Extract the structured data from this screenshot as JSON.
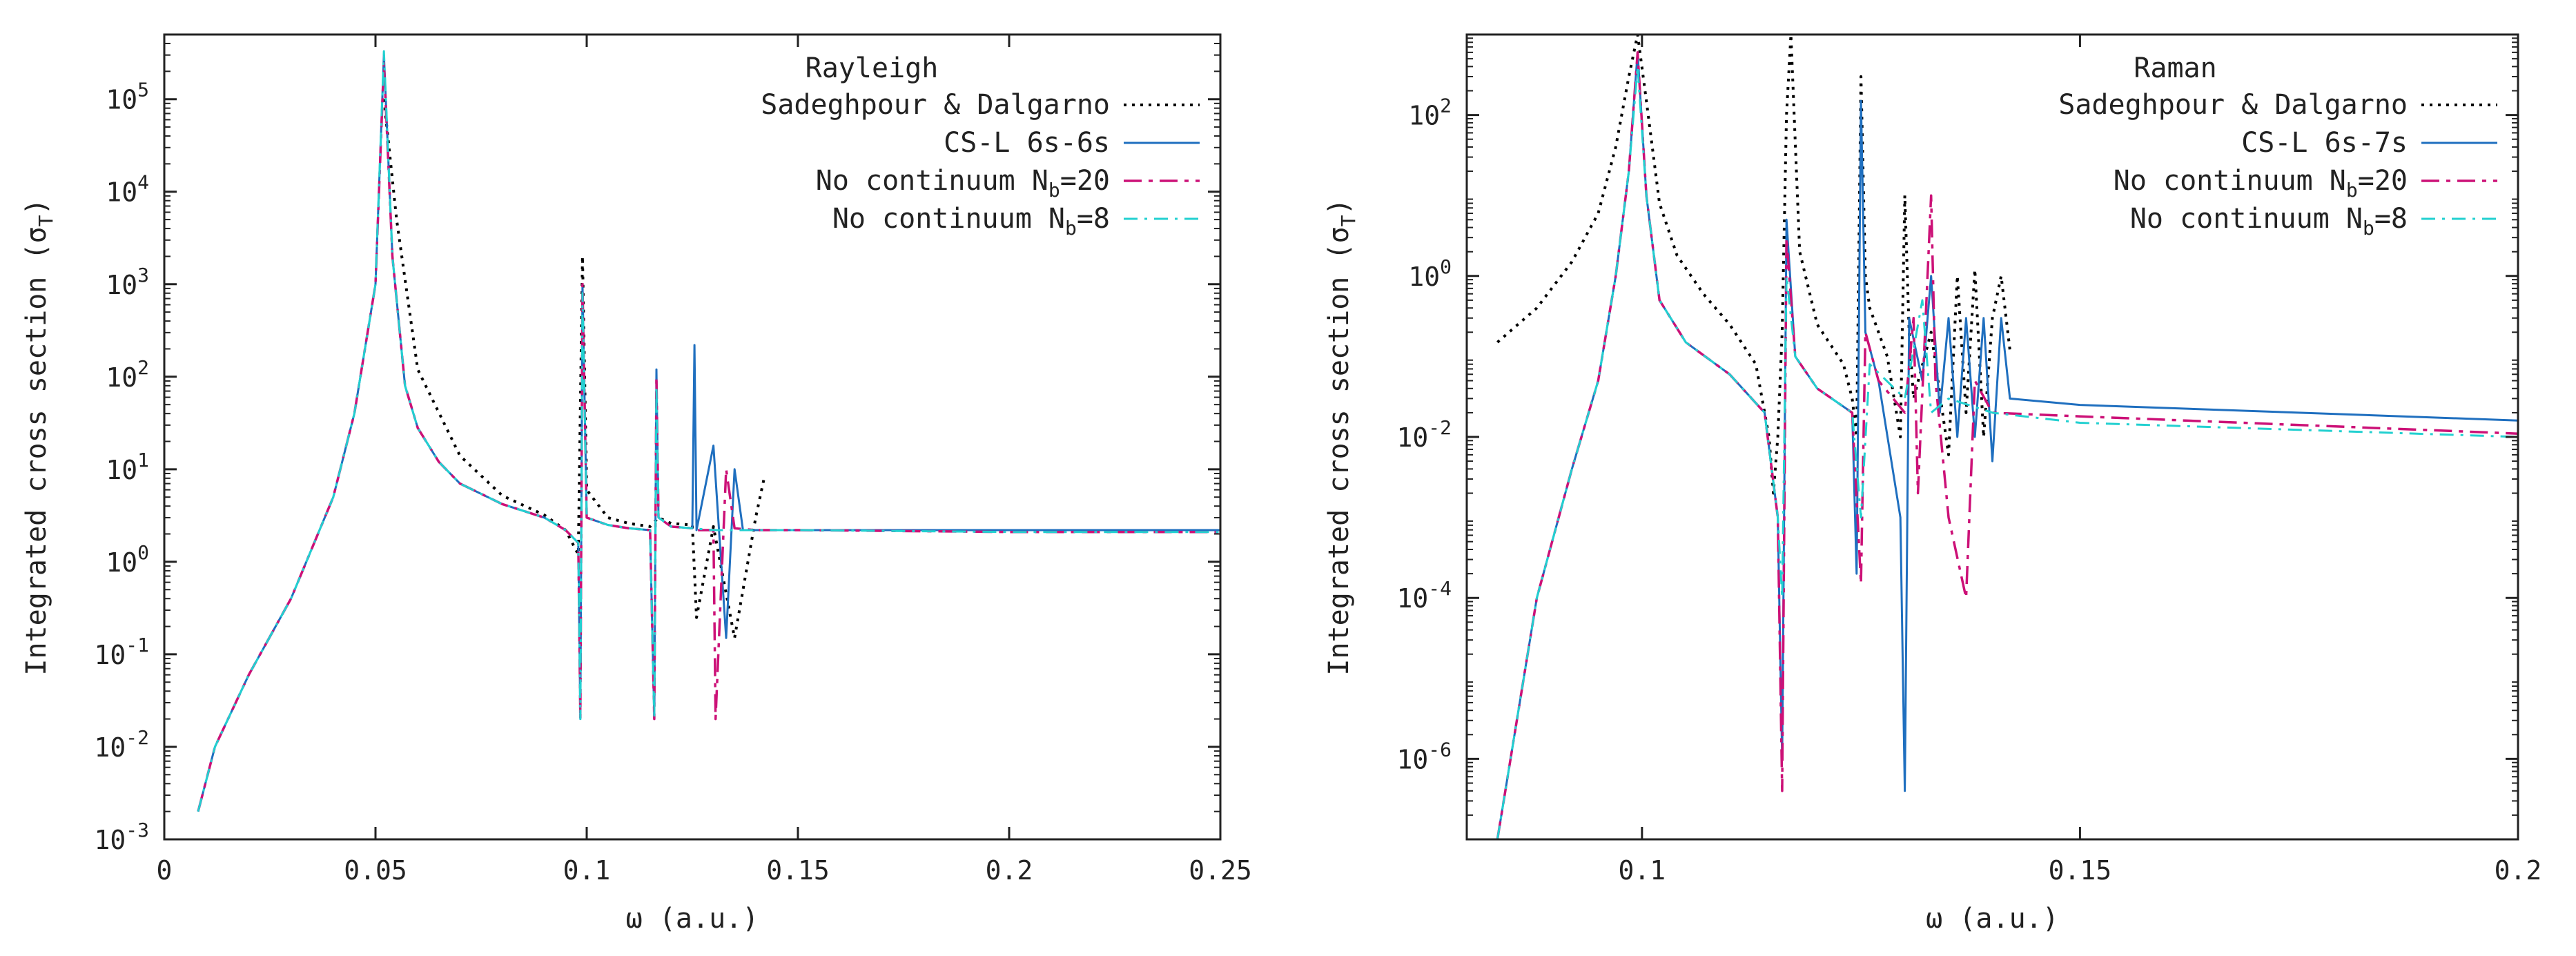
{
  "colors": {
    "axis": "#222222",
    "sadeghpour": "#000000",
    "cs_l": "#1f6fbf",
    "no_cont_20": "#cc1177",
    "no_cont_8": "#22d0d0"
  },
  "chart_data": [
    {
      "type": "line",
      "title": "",
      "legend_title": "Rayleigh",
      "legend_position": "top-right",
      "xlabel": "ω (a.u.)",
      "ylabel": "Integrated cross section (σT)",
      "ylabel_parts": {
        "main": "Integrated cross section (σ",
        "sub": "T",
        "close": ")"
      },
      "xlim": [
        0,
        0.25
      ],
      "ylim": [
        0.001,
        500000
      ],
      "yscale": "log",
      "grid": false,
      "x_ticks": [
        0,
        0.05,
        0.1,
        0.15,
        0.2,
        0.25
      ],
      "x_tick_labels": [
        "0",
        "0.05",
        "0.1",
        "0.15",
        "0.2",
        "0.25"
      ],
      "y_ticks": [
        0.001,
        0.01,
        0.1,
        1,
        10,
        100,
        1000,
        10000,
        100000
      ],
      "y_tick_labels": [
        {
          "base": "10",
          "exp": "-3"
        },
        {
          "base": "10",
          "exp": "-2"
        },
        {
          "base": "10",
          "exp": "-1"
        },
        {
          "base": "10",
          "exp": "0"
        },
        {
          "base": "10",
          "exp": "1"
        },
        {
          "base": "10",
          "exp": "2"
        },
        {
          "base": "10",
          "exp": "3"
        },
        {
          "base": "10",
          "exp": "4"
        },
        {
          "base": "10",
          "exp": "5"
        }
      ],
      "legend": [
        {
          "label": "Sadeghpour & Dalgarno",
          "style": "dotted",
          "color_key": "sadeghpour"
        },
        {
          "label": "CS-L 6s-6s",
          "style": "solid",
          "color_key": "cs_l"
        },
        {
          "label": "No continuum N",
          "sub": "b",
          "suffix": "=20",
          "style": "dashdot",
          "color_key": "no_cont_20"
        },
        {
          "label": "No continuum N",
          "sub": "b",
          "suffix": "=8",
          "style": "dashdot2",
          "color_key": "no_cont_8"
        }
      ],
      "series": [
        {
          "name": "Sadeghpour & Dalgarno",
          "x": [
            0.052,
            0.055,
            0.06,
            0.07,
            0.08,
            0.09,
            0.095,
            0.098,
            0.099,
            0.1,
            0.105,
            0.11,
            0.115,
            0.117,
            0.12,
            0.125,
            0.126,
            0.13,
            0.135,
            0.14,
            0.142
          ],
          "y": [
            100000,
            5000,
            120,
            14,
            5.2,
            3.2,
            2.2,
            1.2,
            2000,
            6,
            3,
            2.6,
            2.4,
            3,
            2.6,
            2.5,
            0.25,
            2.4,
            0.15,
            3,
            8
          ]
        },
        {
          "name": "CS-L 6s-6s",
          "x": [
            0.008,
            0.012,
            0.02,
            0.03,
            0.04,
            0.045,
            0.05,
            0.052,
            0.054,
            0.057,
            0.06,
            0.065,
            0.07,
            0.08,
            0.09,
            0.095,
            0.098,
            0.0985,
            0.099,
            0.1,
            0.105,
            0.11,
            0.115,
            0.116,
            0.1165,
            0.117,
            0.12,
            0.125,
            0.1255,
            0.126,
            0.13,
            0.133,
            0.135,
            0.137,
            0.14,
            0.15,
            0.2,
            0.25
          ],
          "y": [
            0.002,
            0.01,
            0.06,
            0.4,
            5,
            40,
            1000,
            300000,
            2000,
            80,
            28,
            12,
            7,
            4.2,
            3,
            2.2,
            1.6,
            0.02,
            1000,
            3,
            2.5,
            2.3,
            2.2,
            0.02,
            120,
            3,
            2.4,
            2.3,
            220,
            2.2,
            18,
            0.15,
            10,
            2.2,
            2.2,
            2.2,
            2.2,
            2.2
          ]
        },
        {
          "name": "No continuum Nb=20",
          "x": [
            0.008,
            0.012,
            0.02,
            0.03,
            0.04,
            0.045,
            0.05,
            0.052,
            0.054,
            0.057,
            0.06,
            0.065,
            0.07,
            0.08,
            0.09,
            0.095,
            0.098,
            0.0985,
            0.099,
            0.1,
            0.105,
            0.11,
            0.115,
            0.116,
            0.1165,
            0.117,
            0.12,
            0.125,
            0.126,
            0.13,
            0.1305,
            0.133,
            0.135,
            0.14,
            0.15,
            0.2,
            0.25
          ],
          "y": [
            0.002,
            0.01,
            0.06,
            0.4,
            5,
            40,
            1000,
            250000,
            2000,
            80,
            28,
            12,
            7,
            4.2,
            3,
            2.2,
            1.6,
            0.02,
            1000,
            3,
            2.5,
            2.3,
            2.2,
            0.02,
            100,
            3,
            2.4,
            2.3,
            2.2,
            2.2,
            0.02,
            10,
            2.3,
            2.2,
            2.2,
            2.1,
            2.1
          ]
        },
        {
          "name": "No continuum Nb=8",
          "x": [
            0.008,
            0.012,
            0.02,
            0.03,
            0.04,
            0.045,
            0.05,
            0.052,
            0.054,
            0.057,
            0.06,
            0.065,
            0.07,
            0.08,
            0.09,
            0.095,
            0.098,
            0.0985,
            0.099,
            0.1,
            0.105,
            0.11,
            0.115,
            0.116,
            0.1165,
            0.117,
            0.12,
            0.125,
            0.13,
            0.14,
            0.15,
            0.2,
            0.25
          ],
          "y": [
            0.002,
            0.01,
            0.06,
            0.4,
            5,
            40,
            1000,
            330000,
            2000,
            80,
            28,
            12,
            7,
            4.2,
            3,
            2.2,
            1.6,
            0.02,
            800,
            3,
            2.5,
            2.3,
            2.2,
            0.02,
            80,
            3,
            2.4,
            2.3,
            2.2,
            2.2,
            2.2,
            2.1,
            2.1
          ]
        }
      ]
    },
    {
      "type": "line",
      "title": "",
      "legend_title": "Raman",
      "legend_position": "top-right",
      "xlabel": "ω (a.u.)",
      "ylabel": "Integrated cross section (σT)",
      "ylabel_parts": {
        "main": "Integrated cross section (σ",
        "sub": "T",
        "close": ")"
      },
      "xlim": [
        0.08,
        0.2
      ],
      "ylim": [
        1e-07,
        1000
      ],
      "yscale": "log",
      "grid": false,
      "x_ticks": [
        0.1,
        0.15,
        0.2
      ],
      "x_tick_labels": [
        "0.1",
        "0.15",
        "0.2"
      ],
      "y_ticks": [
        1e-06,
        0.0001,
        0.01,
        1,
        100
      ],
      "y_tick_labels": [
        {
          "base": "10",
          "exp": "-6"
        },
        {
          "base": "10",
          "exp": "-4"
        },
        {
          "base": "10",
          "exp": "-2"
        },
        {
          "base": "10",
          "exp": "0"
        },
        {
          "base": "10",
          "exp": "2"
        }
      ],
      "legend": [
        {
          "label": "Sadeghpour & Dalgarno",
          "style": "dotted",
          "color_key": "sadeghpour"
        },
        {
          "label": "CS-L 6s-7s",
          "style": "solid",
          "color_key": "cs_l"
        },
        {
          "label": "No continuum N",
          "sub": "b",
          "suffix": "=20",
          "style": "dashdot",
          "color_key": "no_cont_20"
        },
        {
          "label": "No continuum N",
          "sub": "b",
          "suffix": "=8",
          "style": "dashdot2",
          "color_key": "no_cont_8"
        }
      ],
      "series": [
        {
          "name": "Sadeghpour & Dalgarno",
          "x": [
            0.0835,
            0.088,
            0.092,
            0.095,
            0.097,
            0.0985,
            0.0995,
            0.1005,
            0.102,
            0.104,
            0.107,
            0.11,
            0.113,
            0.1145,
            0.115,
            0.1155,
            0.116,
            0.1165,
            0.117,
            0.118,
            0.12,
            0.123,
            0.124,
            0.1245,
            0.125,
            0.1255,
            0.126,
            0.128,
            0.1295,
            0.13,
            0.1305,
            0.131,
            0.133,
            0.135,
            0.136,
            0.137,
            0.138,
            0.139,
            0.14,
            0.141,
            0.142
          ],
          "y": [
            0.15,
            0.4,
            1.5,
            6,
            40,
            300,
            1000,
            150,
            8,
            1.8,
            0.6,
            0.25,
            0.08,
            0.01,
            0.002,
            0.01,
            0.2,
            100,
            1000,
            2,
            0.25,
            0.08,
            0.03,
            0.01,
            300,
            1,
            0.4,
            0.1,
            0.01,
            10,
            0.2,
            0.03,
            0.2,
            0.006,
            1,
            0.02,
            1.2,
            0.01,
            0.3,
            1,
            0.12
          ]
        },
        {
          "name": "CS-L 6s-7s",
          "x": [
            0.0835,
            0.088,
            0.092,
            0.095,
            0.097,
            0.0985,
            0.0995,
            0.1005,
            0.102,
            0.105,
            0.11,
            0.114,
            0.1155,
            0.116,
            0.1165,
            0.1175,
            0.12,
            0.124,
            0.1245,
            0.125,
            0.1255,
            0.127,
            0.1295,
            0.13,
            0.1305,
            0.132,
            0.133,
            0.134,
            0.135,
            0.136,
            0.137,
            0.138,
            0.139,
            0.14,
            0.141,
            0.142,
            0.15,
            0.2
          ],
          "y": [
            1e-07,
            0.0001,
            0.004,
            0.05,
            1,
            20,
            600,
            10,
            0.5,
            0.15,
            0.06,
            0.02,
            0.001,
            1e-06,
            5,
            0.1,
            0.04,
            0.02,
            0.0002,
            150,
            0.2,
            0.05,
            0.001,
            4e-07,
            0.3,
            0.05,
            1,
            0.02,
            0.3,
            0.01,
            0.3,
            0.01,
            0.3,
            0.005,
            0.3,
            0.03,
            0.025,
            0.016
          ]
        },
        {
          "name": "No continuum Nb=20",
          "x": [
            0.0835,
            0.088,
            0.092,
            0.095,
            0.097,
            0.0985,
            0.0995,
            0.1005,
            0.102,
            0.105,
            0.11,
            0.114,
            0.1155,
            0.116,
            0.1165,
            0.1175,
            0.12,
            0.124,
            0.125,
            0.1255,
            0.127,
            0.13,
            0.131,
            0.1315,
            0.133,
            0.1335,
            0.135,
            0.137,
            0.138,
            0.14,
            0.15,
            0.2
          ],
          "y": [
            1e-07,
            0.0001,
            0.004,
            0.05,
            1,
            20,
            600,
            10,
            0.5,
            0.15,
            0.06,
            0.02,
            0.001,
            4e-07,
            3,
            0.1,
            0.04,
            0.02,
            0.00015,
            0.2,
            0.05,
            0.02,
            0.3,
            0.002,
            10,
            0.05,
            0.001,
            0.0001,
            0.05,
            0.02,
            0.018,
            0.011
          ]
        },
        {
          "name": "No continuum Nb=8",
          "x": [
            0.0835,
            0.088,
            0.092,
            0.095,
            0.097,
            0.0985,
            0.0995,
            0.1005,
            0.102,
            0.105,
            0.11,
            0.114,
            0.1155,
            0.116,
            0.1165,
            0.1175,
            0.12,
            0.124,
            0.125,
            0.126,
            0.13,
            0.132,
            0.133,
            0.135,
            0.14,
            0.15,
            0.2
          ],
          "y": [
            1e-07,
            0.0001,
            0.004,
            0.05,
            1,
            20,
            400,
            10,
            0.5,
            0.15,
            0.06,
            0.02,
            0.001,
            0.0001,
            1,
            0.1,
            0.04,
            0.02,
            0.001,
            0.08,
            0.03,
            0.5,
            0.02,
            0.03,
            0.02,
            0.015,
            0.01
          ]
        }
      ]
    }
  ]
}
